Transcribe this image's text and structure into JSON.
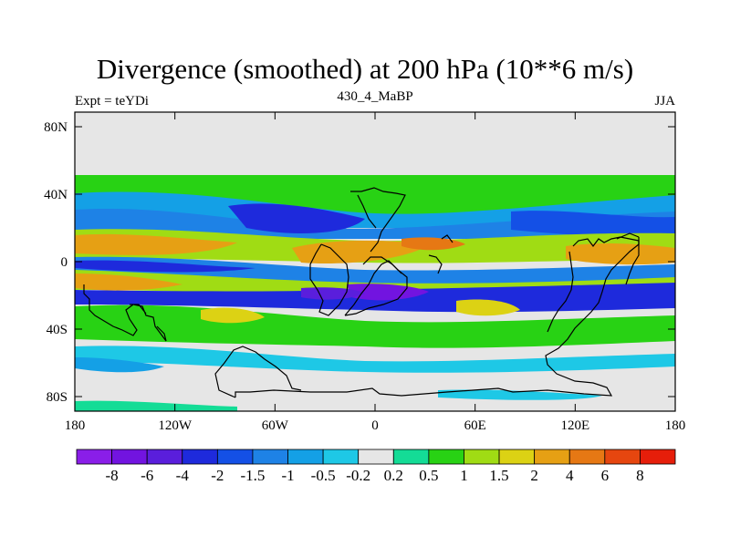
{
  "chart_data": {
    "type": "heatmap",
    "title": "Divergence (smoothed) at 200 hPa (10**6 m/s)",
    "left_label": "Expt = teYDi",
    "center_label": "430_4_MaBP",
    "right_label": "JJA",
    "x_ticks": [
      "180",
      "120W",
      "60W",
      "0",
      "60E",
      "120E",
      "180"
    ],
    "y_ticks": [
      "80N",
      "40N",
      "0",
      "40S",
      "80S"
    ],
    "colorbar": {
      "levels": [
        "-8",
        "-6",
        "-4",
        "-2",
        "-1.5",
        "-1",
        "-0.5",
        "-0.2",
        "0.2",
        "0.5",
        "1",
        "1.5",
        "2",
        "4",
        "6",
        "8"
      ],
      "colors": [
        "#8a1ee8",
        "#7214e0",
        "#5a1edc",
        "#1e2adc",
        "#1450e6",
        "#1e82e6",
        "#14a0e6",
        "#1ec8e6",
        "#e6e6e6",
        "#14dc96",
        "#28d214",
        "#a0dc14",
        "#dcd214",
        "#e6a014",
        "#e67814",
        "#e6460f",
        "#e61e0a"
      ]
    },
    "colors": {
      "neutral": "#e6e6e6",
      "coast": "#000000",
      "frame": "#000000"
    }
  }
}
